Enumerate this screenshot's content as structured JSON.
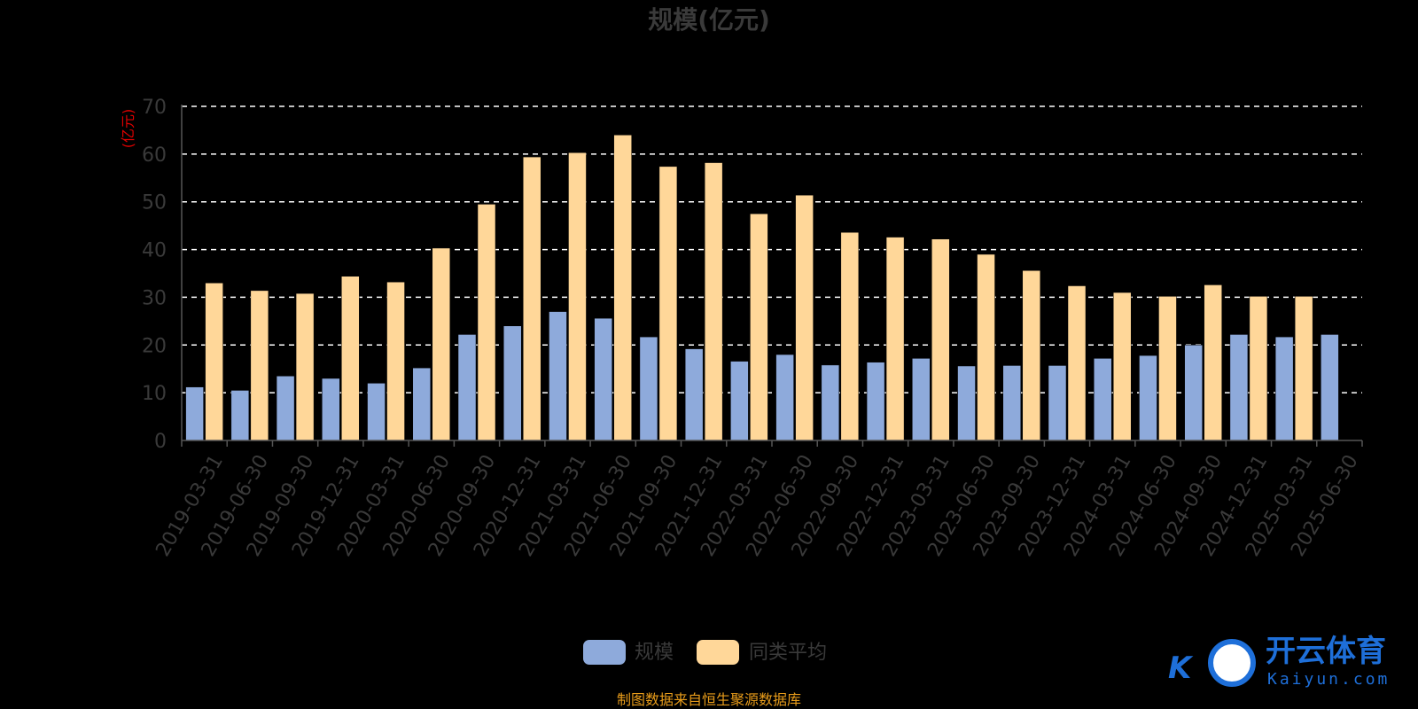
{
  "chart_data": {
    "type": "bar",
    "title": "规模(亿元)",
    "ylabel": "(亿元)",
    "ylim": [
      0,
      70
    ],
    "yticks": [
      0,
      10,
      20,
      30,
      40,
      50,
      60,
      70
    ],
    "grid": true,
    "legend_position": "bottom",
    "categories": [
      "2019-03-31",
      "2019-06-30",
      "2019-09-30",
      "2019-12-31",
      "2020-03-31",
      "2020-06-30",
      "2020-09-30",
      "2020-12-31",
      "2021-03-31",
      "2021-06-30",
      "2021-09-30",
      "2021-12-31",
      "2022-03-31",
      "2022-06-30",
      "2022-09-30",
      "2022-12-31",
      "2023-03-31",
      "2023-06-30",
      "2023-09-30",
      "2023-12-31",
      "2024-03-31",
      "2024-06-30",
      "2024-09-30",
      "2024-12-31",
      "2025-03-31",
      "2025-06-30"
    ],
    "series": [
      {
        "name": "规模",
        "color": "#8eaadb",
        "values": [
          11.2,
          10.5,
          13.5,
          13.0,
          12.0,
          15.2,
          22.2,
          24.0,
          27.0,
          25.6,
          21.7,
          19.2,
          16.6,
          18.0,
          15.8,
          16.4,
          17.2,
          15.6,
          15.7,
          15.7,
          17.2,
          17.8,
          20.0,
          22.2,
          21.7,
          22.2
        ]
      },
      {
        "name": "同类平均",
        "color": "#ffd799",
        "values": [
          33.0,
          31.4,
          30.8,
          34.4,
          33.2,
          40.3,
          49.5,
          59.4,
          60.3,
          64.0,
          57.4,
          58.2,
          47.5,
          51.4,
          43.6,
          42.6,
          42.2,
          39.0,
          35.6,
          32.4,
          31.0,
          30.2,
          32.6,
          30.2,
          30.2,
          null
        ]
      }
    ]
  },
  "footer": {
    "source": "制图数据来自恒生聚源数据库"
  },
  "logo": {
    "text": "开云体育",
    "sub": "Kaiyun.com",
    "mark": "K"
  }
}
